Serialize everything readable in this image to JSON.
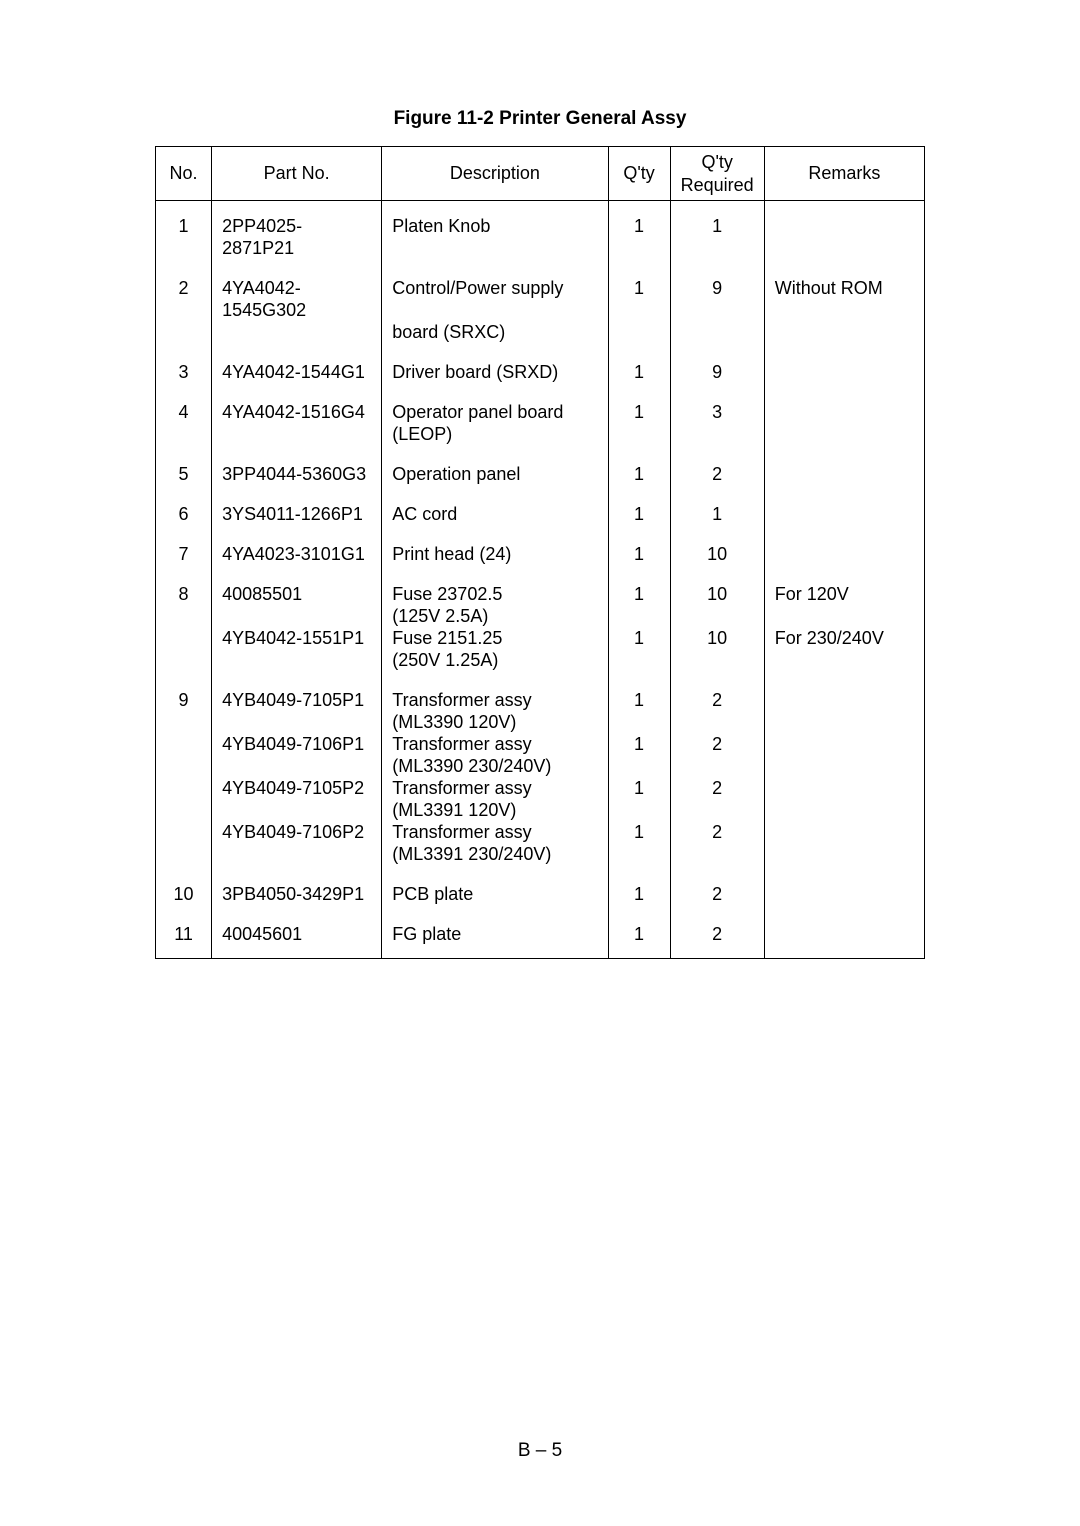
{
  "title": "Figure 11-2 Printer General Assy",
  "footer": "B – 5",
  "columns": {
    "no": "No.",
    "part": "Part No.",
    "desc": "Description",
    "qty": "Q'ty",
    "qreq_line1": "Q'ty",
    "qreq_line2": "Required",
    "rem": "Remarks"
  },
  "rows": [
    {
      "no": "1",
      "part": "2PP4025-2871P21",
      "desc1": "Platen Knob",
      "desc2": "",
      "qty": "1",
      "qreq": "1",
      "rem": ""
    },
    {
      "no": "2",
      "part": "4YA4042-1545G302",
      "desc1": "Control/Power supply",
      "desc2": "board (SRXC)",
      "qty": "1",
      "qreq": "9",
      "rem": "Without ROM"
    },
    {
      "no": "3",
      "part": "4YA4042-1544G1",
      "desc1": "Driver board (SRXD)",
      "desc2": "",
      "qty": "1",
      "qreq": "9",
      "rem": ""
    },
    {
      "no": "4",
      "part": "4YA4042-1516G4",
      "desc1": "Operator panel board",
      "desc2": "(LEOP)",
      "qty": "1",
      "qreq": "3",
      "rem": ""
    },
    {
      "no": "5",
      "part": "3PP4044-5360G3",
      "desc1": "Operation panel",
      "desc2": "",
      "qty": "1",
      "qreq": "2",
      "rem": ""
    },
    {
      "no": "6",
      "part": "3YS4011-1266P1",
      "desc1": "AC cord",
      "desc2": "",
      "qty": "1",
      "qreq": "1",
      "rem": ""
    },
    {
      "no": "7",
      "part": "4YA4023-3101G1",
      "desc1": "Print head (24)",
      "desc2": "",
      "qty": "1",
      "qreq": "10",
      "rem": ""
    },
    {
      "no": "8",
      "part": "40085501",
      "desc1": "Fuse 23702.5",
      "desc2": "(125V 2.5A)",
      "qty": "1",
      "qreq": "10",
      "rem": "For 120V"
    },
    {
      "no": "",
      "part": "4YB4042-1551P1",
      "desc1": "Fuse 2151.25",
      "desc2": "(250V 1.25A)",
      "qty": "1",
      "qreq": "10",
      "rem": "For 230/240V"
    },
    {
      "no": "9",
      "part": "4YB4049-7105P1",
      "desc1": "Transformer assy",
      "desc2": "(ML3390 120V)",
      "qty": "1",
      "qreq": "2",
      "rem": ""
    },
    {
      "no": "",
      "part": "4YB4049-7106P1",
      "desc1": "Transformer assy",
      "desc2": "(ML3390 230/240V)",
      "qty": "1",
      "qreq": "2",
      "rem": ""
    },
    {
      "no": "",
      "part": "4YB4049-7105P2",
      "desc1": "Transformer assy",
      "desc2": "(ML3391 120V)",
      "qty": "1",
      "qreq": "2",
      "rem": ""
    },
    {
      "no": "",
      "part": "4YB4049-7106P2",
      "desc1": "Transformer assy",
      "desc2": "(ML3391 230/240V)",
      "qty": "1",
      "qreq": "2",
      "rem": ""
    },
    {
      "no": "10",
      "part": "3PB4050-3429P1",
      "desc1": "PCB plate",
      "desc2": "",
      "qty": "1",
      "qreq": "2",
      "rem": ""
    },
    {
      "no": "11",
      "part": "40045601",
      "desc1": "FG plate",
      "desc2": "",
      "qty": "1",
      "qreq": "2",
      "rem": ""
    }
  ]
}
